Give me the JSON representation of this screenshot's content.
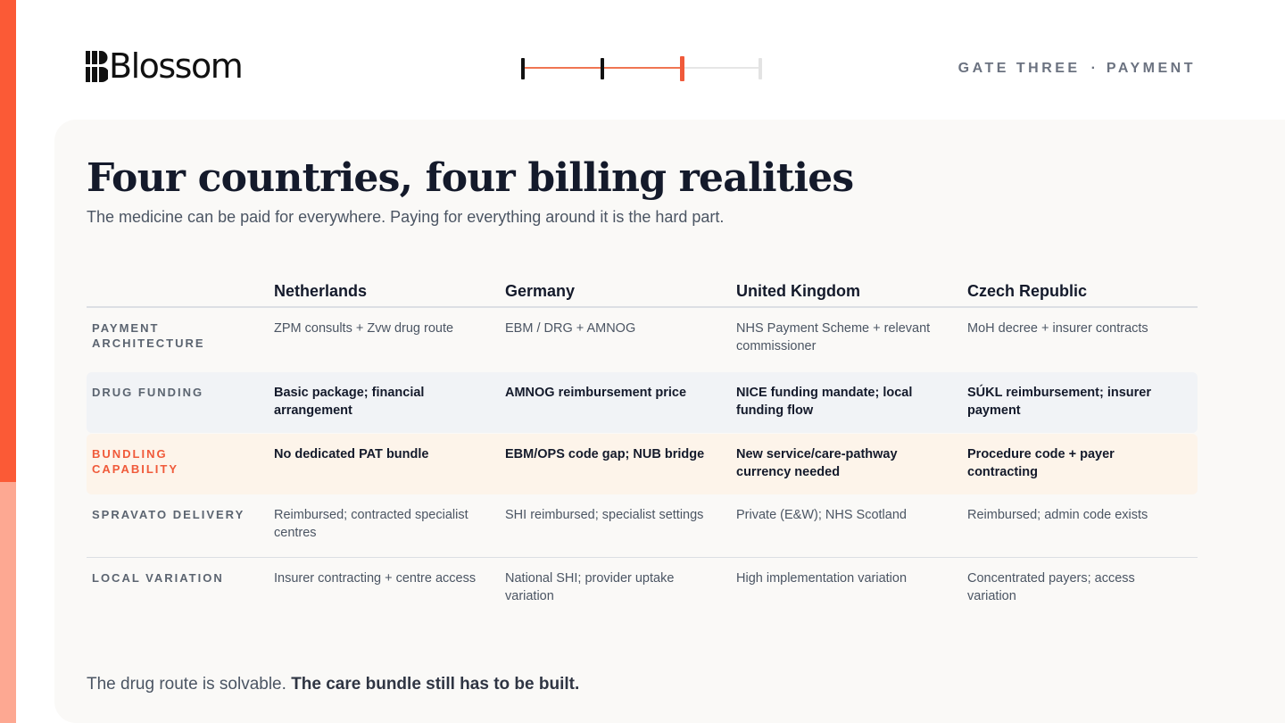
{
  "brand": {
    "name": "Blossom",
    "accent": "#fb5a36",
    "accent_light": "#fda892"
  },
  "header": {
    "gate_label": "GATE THREE",
    "separator": "·",
    "stage_label": "PAYMENT"
  },
  "progress": {
    "steps_total": 4,
    "current_step": 3
  },
  "slide": {
    "title": "Four countries, four billing realities",
    "subtitle": "The medicine can be paid for everywhere. Paying for everything around it is the hard part."
  },
  "table": {
    "columns": [
      "",
      "Netherlands",
      "Germany",
      "United Kingdom",
      "Czech Republic"
    ],
    "rows": [
      {
        "label": "PAYMENT ARCHITECTURE",
        "cells": [
          "ZPM consults + Zvw drug route",
          "EBM / DRG + AMNOG",
          "NHS Payment Scheme + relevant commissioner",
          "MoH decree + insurer contracts"
        ]
      },
      {
        "label": "DRUG FUNDING",
        "cells": [
          "Basic package; financial arrangement",
          "AMNOG reimbursement price",
          "NICE funding mandate; local funding flow",
          "SÚKL reimbursement; insurer payment"
        ]
      },
      {
        "label": "BUNDLING CAPABILITY",
        "cells": [
          "No dedicated PAT bundle",
          "EBM/OPS code gap; NUB bridge",
          "New service/care-pathway currency needed",
          "Procedure code + payer contracting"
        ]
      },
      {
        "label": "SPRAVATO DELIVERY",
        "cells": [
          "Reimbursed; contracted specialist centres",
          "SHI reimbursed; specialist settings",
          "Private (E&W); NHS Scotland",
          "Reimbursed; admin code exists"
        ]
      },
      {
        "label": "LOCAL VARIATION",
        "cells": [
          "Insurer contracting + centre access",
          "National SHI; provider uptake variation",
          "High implementation variation",
          "Concentrated payers; access variation"
        ]
      }
    ]
  },
  "footer": {
    "lead": "The drug route is solvable.",
    "emphasis": "The care bundle still has to be built."
  }
}
